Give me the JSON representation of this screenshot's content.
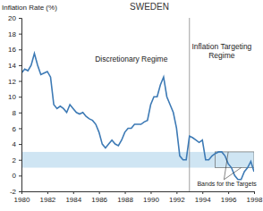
{
  "chart_data": {
    "type": "line",
    "title": "SWEDEN",
    "y_label": "Inflation Rate (%)",
    "annotations": [
      "Discretionary Regime",
      "Inflation Targeting Regime",
      "Bands for the Targets"
    ],
    "regime_change_x": 1993,
    "target_band": [
      1,
      3
    ],
    "x": [
      1980,
      1980.25,
      1980.5,
      1980.75,
      1981,
      1981.25,
      1981.5,
      1981.75,
      1982,
      1982.25,
      1982.5,
      1982.75,
      1983,
      1983.25,
      1983.5,
      1983.75,
      1984,
      1984.25,
      1984.5,
      1984.75,
      1985,
      1985.25,
      1985.5,
      1985.75,
      1986,
      1986.25,
      1986.5,
      1986.75,
      1987,
      1987.25,
      1987.5,
      1987.75,
      1988,
      1988.25,
      1988.5,
      1988.75,
      1989,
      1989.25,
      1989.5,
      1989.75,
      1990,
      1990.25,
      1990.5,
      1990.75,
      1991,
      1991.25,
      1991.5,
      1991.75,
      1992,
      1992.25,
      1992.5,
      1992.75,
      1993,
      1993.25,
      1993.5,
      1993.75,
      1994,
      1994.25,
      1994.5,
      1994.75,
      1995,
      1995.25,
      1995.5,
      1995.75,
      1996,
      1996.25,
      1996.5,
      1996.75,
      1997,
      1997.25,
      1997.5,
      1997.75,
      1998
    ],
    "series": [
      {
        "name": "Inflation Rate",
        "color": "#3d7ab5",
        "values": [
          13,
          13.5,
          13.3,
          14,
          15.5,
          14,
          12.8,
          13,
          13.2,
          12.5,
          9,
          8.5,
          8.8,
          8.5,
          8,
          9,
          8.5,
          8,
          7.8,
          8,
          7.5,
          7.2,
          7,
          6.5,
          5.5,
          4,
          3.5,
          4,
          4.5,
          4,
          3.8,
          4.5,
          5.5,
          6,
          6,
          6.5,
          6.5,
          6.5,
          6.8,
          7,
          9,
          10,
          10,
          11.5,
          12.5,
          10,
          9,
          8,
          6,
          2.5,
          2,
          2,
          5,
          4.8,
          4.5,
          4.2,
          4.5,
          2,
          2,
          2.5,
          2.8,
          3,
          3,
          2.5,
          1.5,
          1,
          0,
          -0.5,
          -0.5,
          0.5,
          1,
          1.8,
          0.5
        ]
      }
    ],
    "xlim": [
      1980,
      1998
    ],
    "ylim": [
      -2,
      20
    ],
    "xticks": [
      1980,
      1982,
      1984,
      1986,
      1988,
      1990,
      1992,
      1994,
      1996,
      1998
    ],
    "yticks": [
      -2,
      0,
      2,
      4,
      6,
      8,
      10,
      12,
      14,
      16,
      18,
      20
    ],
    "grid": false
  }
}
